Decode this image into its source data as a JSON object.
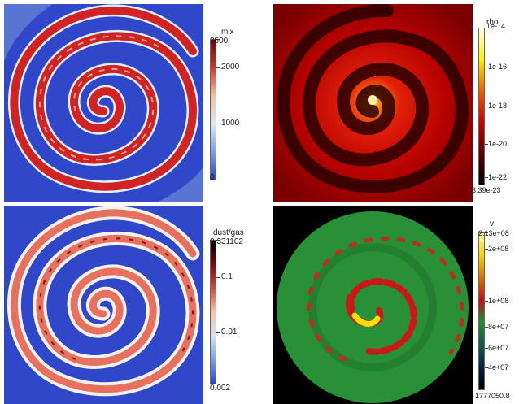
{
  "panels": [
    {
      "name": "mix",
      "colorbar": {
        "title": "mix",
        "ticks": [
          "2500",
          "2000",
          "1000",
          "0"
        ],
        "colors": [
          "#6b0014",
          "#d23a2a",
          "#f2c0a6",
          "#dfe6f4",
          "#7f9fe4",
          "#2a48c8"
        ]
      }
    },
    {
      "name": "rho",
      "colorbar": {
        "title": "rho",
        "ticks": [
          "1e-14",
          "1e-16",
          "1e-18",
          "1e-20",
          "1e-22",
          "3.39e-23"
        ],
        "colors": [
          "#ffffe6",
          "#f9f200",
          "#f05a00",
          "#d00000",
          "#600000",
          "#000000"
        ]
      }
    },
    {
      "name": "dust/gas",
      "colorbar": {
        "title": "dust/gas",
        "ticks": [
          "0.331102",
          "0.1",
          "0.01",
          "0.002"
        ],
        "colors": [
          "#000000",
          "#7a0c0c",
          "#d94a3a",
          "#f5c6b0",
          "#d6def2",
          "#7f9fe4",
          "#2a48c8"
        ]
      }
    },
    {
      "name": "v",
      "colorbar": {
        "title": "v",
        "ticks": [
          "2.13e+08",
          "2e+08",
          "1e+08",
          "8e+07",
          "6e+07",
          "4e+07",
          "1777050.8"
        ],
        "colors": [
          "#ffffb0",
          "#f0d400",
          "#e07000",
          "#c01010",
          "#1f8f2c",
          "#0f5a4a",
          "#06223e",
          "#000000"
        ]
      }
    }
  ]
}
